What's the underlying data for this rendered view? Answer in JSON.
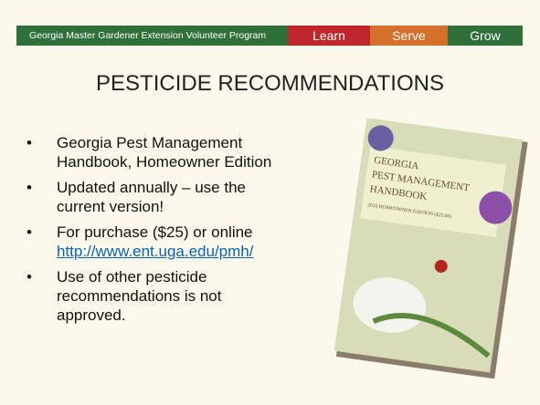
{
  "header": {
    "program": "Georgia Master Gardener Extension Volunteer Program",
    "tabs": [
      "Learn",
      "Serve",
      "Grow"
    ]
  },
  "title": "PESTICIDE RECOMMENDATIONS",
  "bullets": [
    {
      "text": "Georgia Pest Management Handbook, Homeowner Edition"
    },
    {
      "text": "Updated annually – use the current version!"
    },
    {
      "text": "For purchase ($25) or online",
      "link": "http://www.ent.uga.edu/pmh/"
    },
    {
      "text": "Use of other pesticide recommendations is not approved."
    }
  ],
  "cover": {
    "lines": [
      "GEORGIA",
      "PEST MANAGEMENT",
      "HANDBOOK"
    ],
    "edition": "2016 HOMEOWNER EDITION ($25.00)"
  }
}
